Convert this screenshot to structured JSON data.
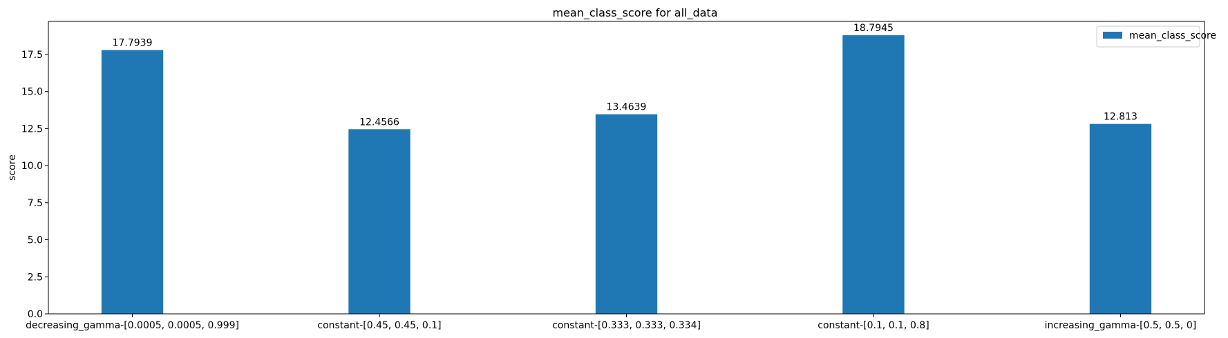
{
  "chart_data": {
    "type": "bar",
    "title": "mean_class_score for all_data",
    "xlabel": "",
    "ylabel": "score",
    "categories": [
      "decreasing_gamma-[0.0005, 0.0005, 0.999]",
      "constant-[0.45, 0.45, 0.1]",
      "constant-[0.333, 0.333, 0.334]",
      "constant-[0.1, 0.1, 0.8]",
      "increasing_gamma-[0.5, 0.5, 0]"
    ],
    "series": [
      {
        "name": "mean_class_score",
        "values": [
          17.7939,
          12.4566,
          13.4639,
          18.7945,
          12.813
        ],
        "labels": [
          "17.7939",
          "12.4566",
          "13.4639",
          "18.7945",
          "12.813"
        ],
        "color": "#1f77b4"
      }
    ],
    "ylim": [
      0,
      19.73
    ],
    "yticks": [
      0.0,
      2.5,
      5.0,
      7.5,
      10.0,
      12.5,
      15.0,
      17.5
    ],
    "ytick_labels": [
      "0.0",
      "2.5",
      "5.0",
      "7.5",
      "10.0",
      "12.5",
      "15.0",
      "17.5"
    ],
    "grid": false,
    "legend": {
      "position": "top-right",
      "entries": [
        "mean_class_score"
      ]
    }
  }
}
